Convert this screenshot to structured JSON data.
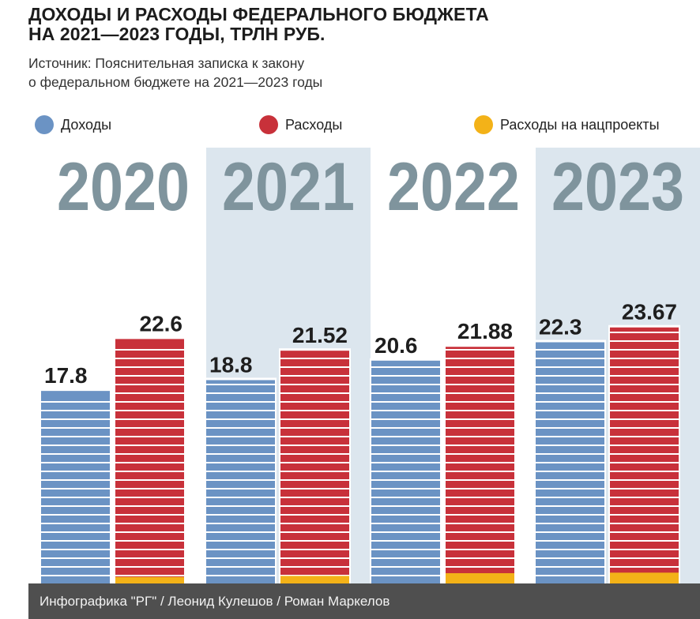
{
  "title_lines": [
    "ДОХОДЫ И РАСХОДЫ ФЕДЕРАЛЬНОГО БЮДЖЕТА",
    "НА 2021—2023 ГОДЫ, ТРЛН РУБ."
  ],
  "source_lines": [
    "Источник: Пояснительная записка к закону",
    "о федеральном бюджете на 2021—2023 годы"
  ],
  "legend": [
    {
      "label": "Доходы",
      "color": "#6b93c4"
    },
    {
      "label": "Расходы",
      "color": "#c8313a"
    },
    {
      "label": "Расходы на нацпроекты",
      "color": "#f3b218"
    }
  ],
  "chart_data": {
    "type": "bar",
    "title": "ДОХОДЫ И РАСХОДЫ ФЕДЕРАЛЬНОГО БЮДЖЕТА НА 2021—2023 ГОДЫ, ТРЛН РУБ.",
    "categories": [
      "2020",
      "2021",
      "2022",
      "2023"
    ],
    "series": [
      {
        "name": "Доходы",
        "values": [
          17.8,
          18.8,
          20.6,
          22.3
        ],
        "labels": [
          "17.8",
          "18.8",
          "20.6",
          "22.3"
        ],
        "color": "#6b93c4"
      },
      {
        "name": "Расходы",
        "values": [
          22.6,
          21.52,
          21.88,
          23.67
        ],
        "labels": [
          "22.6",
          "21.52",
          "21.88",
          "23.67"
        ],
        "color": "#c8313a"
      },
      {
        "name": "Расходы на нацпроекты",
        "values": [
          0.6,
          0.7,
          0.95,
          1.0
        ],
        "color": "#f3b218"
      }
    ],
    "shaded_categories": [
      "2021",
      "2023"
    ],
    "shade_color": "#dce6ee",
    "year_label_color": "#7f949d",
    "legend_position": "top",
    "grid": false
  },
  "footer": "Инфографика \"РГ\" / Леонид Кулешов / Роман Маркелов"
}
